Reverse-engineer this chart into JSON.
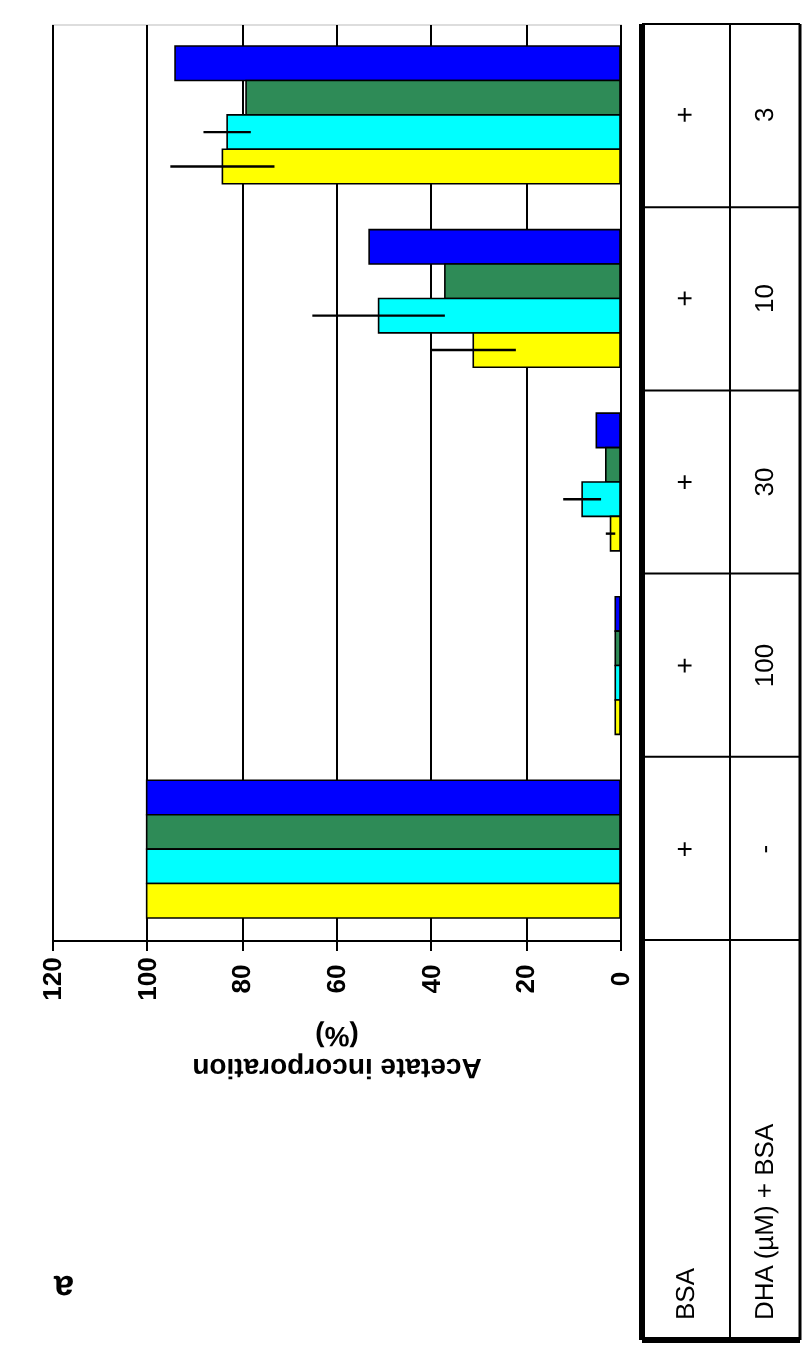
{
  "chart_data": {
    "type": "bar",
    "orientation": "horizontal",
    "title": "a",
    "xlabel": "Acetate incorporation\n(%)",
    "categories": [
      "3",
      "10",
      "30",
      "100",
      "-"
    ],
    "series": [
      {
        "color": "#0000ff",
        "values": [
          94,
          53,
          5,
          1,
          100
        ]
      },
      {
        "color": "#2e8b57",
        "values": [
          79,
          37,
          3,
          1,
          100
        ]
      },
      {
        "color": "#00ffff",
        "values": [
          83,
          51,
          8,
          1,
          100
        ],
        "errors": [
          5,
          14,
          4,
          null,
          null
        ]
      },
      {
        "color": "#ffff00",
        "values": [
          84,
          31,
          2,
          1,
          100
        ],
        "errors": [
          11,
          9,
          1,
          null,
          null
        ]
      }
    ],
    "xlim": [
      120,
      0
    ],
    "xticks": [
      120,
      100,
      80,
      60,
      40,
      20,
      0
    ],
    "grid": "x",
    "legend": false,
    "annotations": [
      "BSA",
      "DHA (µM) + BSA",
      "+",
      "+",
      "+",
      "+",
      "+"
    ]
  }
}
